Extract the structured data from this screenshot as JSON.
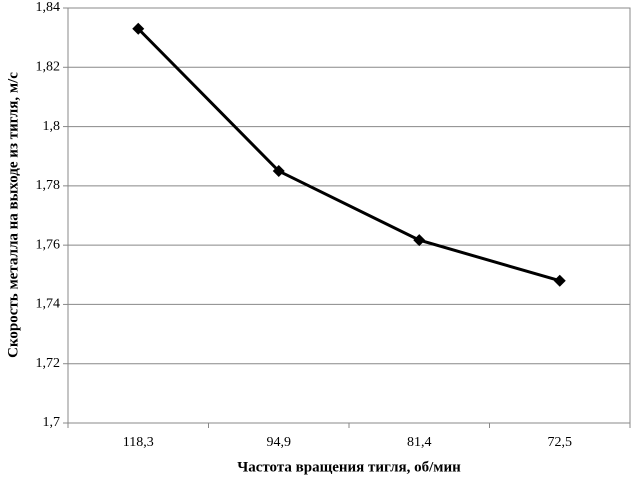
{
  "chart_data": {
    "type": "line",
    "x_label": "Частота вращения тигля, об/мин",
    "y_label": "Скорость металла на выходе из тигля, м/с",
    "categories": [
      "118,3",
      "94,9",
      "81,4",
      "72,5"
    ],
    "series": [
      {
        "name": null,
        "color": "#000000",
        "values": [
          1.833,
          1.785,
          1.7617,
          1.748
        ]
      }
    ],
    "ylim": [
      1.7,
      1.84
    ],
    "yticks": [
      {
        "value": 1.7,
        "label": "1,7"
      },
      {
        "value": 1.72,
        "label": "1,72"
      },
      {
        "value": 1.74,
        "label": "1,74"
      },
      {
        "value": 1.76,
        "label": "1,76"
      },
      {
        "value": 1.78,
        "label": "1,78"
      },
      {
        "value": 1.8,
        "label": "1,8"
      },
      {
        "value": 1.82,
        "label": "1,82"
      },
      {
        "value": 1.84,
        "label": "1,84"
      }
    ],
    "grid": true
  }
}
